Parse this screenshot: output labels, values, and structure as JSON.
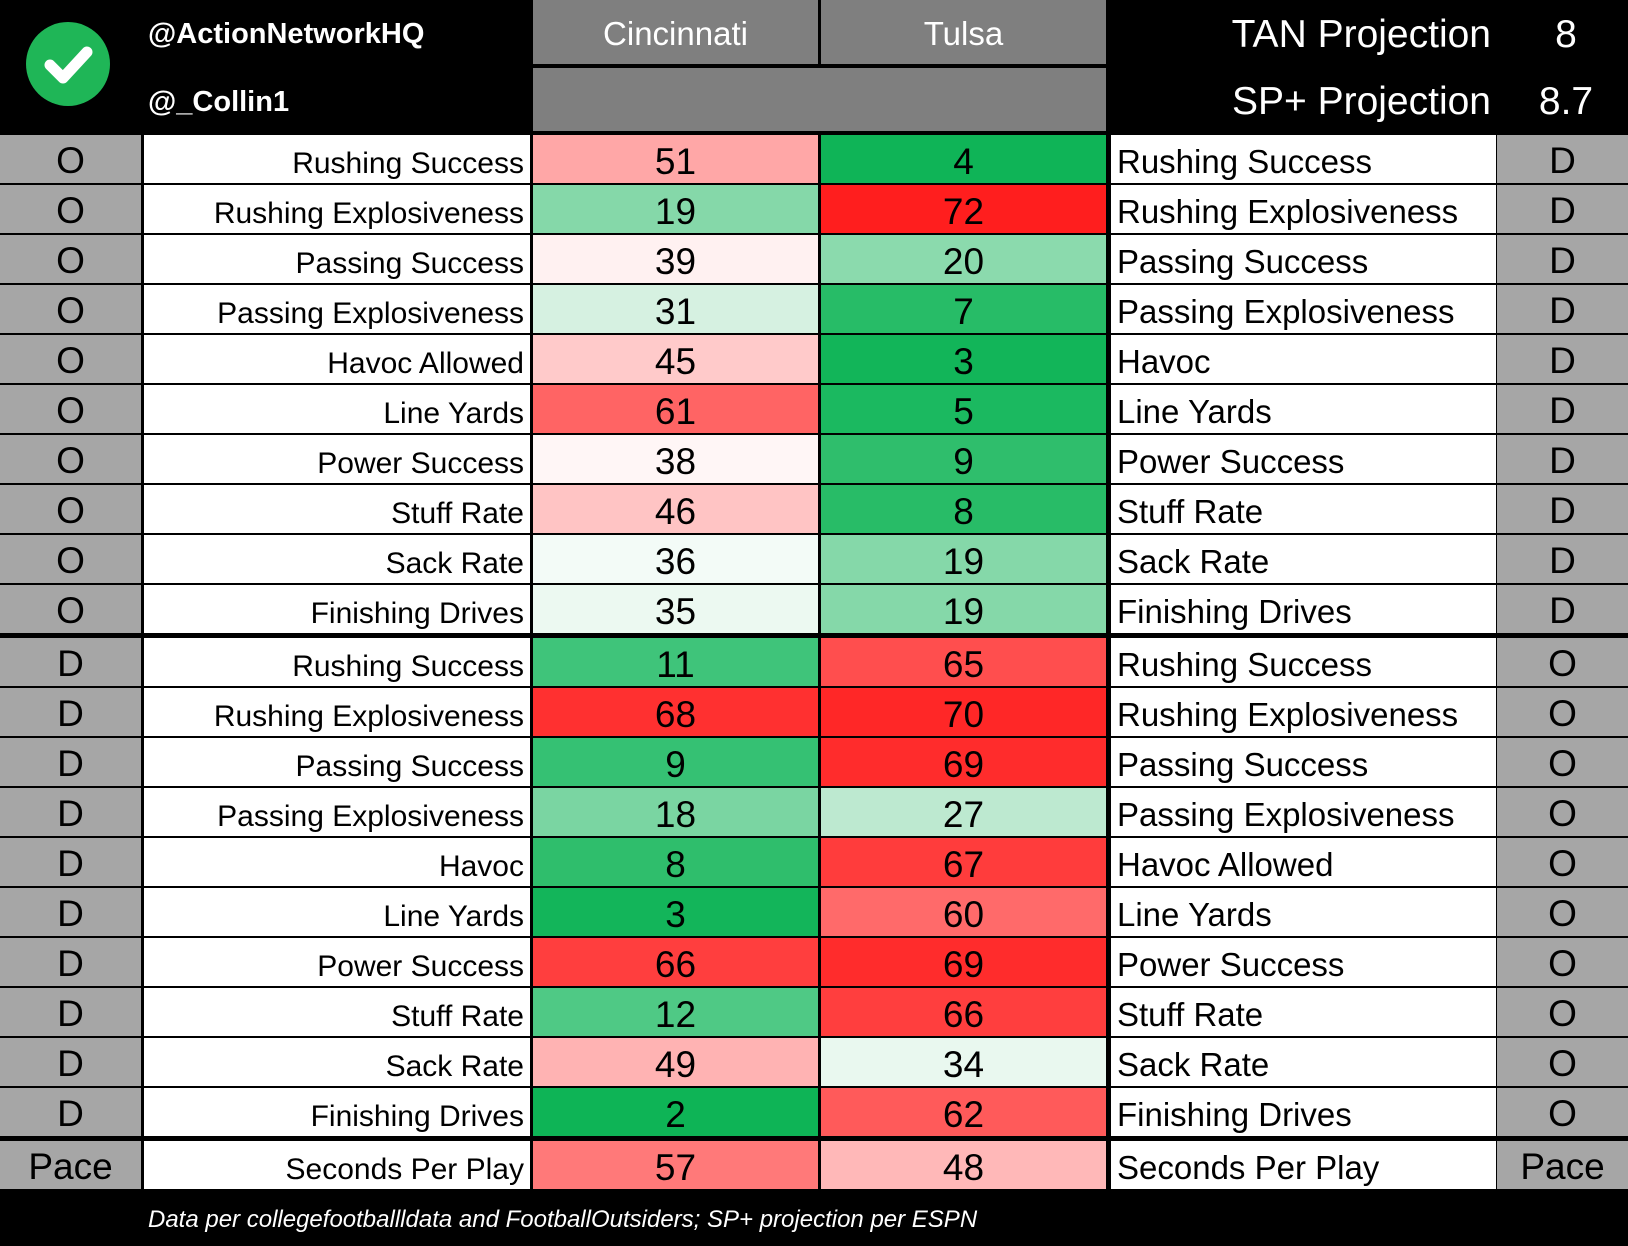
{
  "header": {
    "handle_primary": "@ActionNetworkHQ",
    "handle_secondary": "@_Collin1",
    "team_a": "Cincinnati",
    "team_b": "Tulsa",
    "projections": [
      {
        "label": "TAN Projection",
        "value": "8"
      },
      {
        "label": "SP+ Projection",
        "value": "8.7"
      }
    ]
  },
  "sections": [
    {
      "left_side": "O",
      "right_side": "D",
      "rows": [
        {
          "left_stat": "Rushing Success",
          "a": "51",
          "b": "4",
          "right_stat": "Rushing Success",
          "a_color": "#ffa7a7",
          "b_color": "#0fb457"
        },
        {
          "left_stat": "Rushing Explosiveness",
          "a": "19",
          "b": "72",
          "right_stat": "Rushing Explosiveness",
          "a_color": "#85d8a9",
          "b_color": "#ff1e1e"
        },
        {
          "left_stat": "Passing Success",
          "a": "39",
          "b": "20",
          "right_stat": "Passing Success",
          "a_color": "#fff1f1",
          "b_color": "#8bdaad"
        },
        {
          "left_stat": "Passing Explosiveness",
          "a": "31",
          "b": "7",
          "right_stat": "Passing Explosiveness",
          "a_color": "#d6f1e1",
          "b_color": "#27bc67"
        },
        {
          "left_stat": "Havoc Allowed",
          "a": "45",
          "b": "3",
          "right_stat": "Havoc",
          "a_color": "#ffcaca",
          "b_color": "#12b559"
        },
        {
          "left_stat": "Line Yards",
          "a": "61",
          "b": "5",
          "right_stat": "Line Yards",
          "a_color": "#ff6464",
          "b_color": "#1bb960"
        },
        {
          "left_stat": "Power Success",
          "a": "38",
          "b": "9",
          "right_stat": "Power Success",
          "a_color": "#fff6f6",
          "b_color": "#2fbe6c"
        },
        {
          "left_stat": "Stuff Rate",
          "a": "46",
          "b": "8",
          "right_stat": "Stuff Rate",
          "a_color": "#ffc4c4",
          "b_color": "#28bc67"
        },
        {
          "left_stat": "Sack Rate",
          "a": "36",
          "b": "19",
          "right_stat": "Sack Rate",
          "a_color": "#f3fbf7",
          "b_color": "#85d8a9"
        },
        {
          "left_stat": "Finishing Drives",
          "a": "35",
          "b": "19",
          "right_stat": "Finishing Drives",
          "a_color": "#ecf9f1",
          "b_color": "#85d8a9"
        }
      ]
    },
    {
      "left_side": "D",
      "right_side": "O",
      "rows": [
        {
          "left_stat": "Rushing Success",
          "a": "11",
          "b": "65",
          "right_stat": "Rushing Success",
          "a_color": "#3fc47a",
          "b_color": "#ff4e4e"
        },
        {
          "left_stat": "Rushing Explosiveness",
          "a": "68",
          "b": "70",
          "right_stat": "Rushing Explosiveness",
          "a_color": "#ff3030",
          "b_color": "#ff2727"
        },
        {
          "left_stat": "Passing Success",
          "a": "9",
          "b": "69",
          "right_stat": "Passing Success",
          "a_color": "#35c173",
          "b_color": "#ff2c2c"
        },
        {
          "left_stat": "Passing Explosiveness",
          "a": "18",
          "b": "27",
          "right_stat": "Passing Explosiveness",
          "a_color": "#7ad5a2",
          "b_color": "#bde9d0"
        },
        {
          "left_stat": "Havoc",
          "a": "8",
          "b": "67",
          "right_stat": "Havoc Allowed",
          "a_color": "#2fbe6c",
          "b_color": "#ff3c3c"
        },
        {
          "left_stat": "Line Yards",
          "a": "3",
          "b": "60",
          "right_stat": "Line Yards",
          "a_color": "#13b55a",
          "b_color": "#ff6a6a"
        },
        {
          "left_stat": "Power Success",
          "a": "66",
          "b": "69",
          "right_stat": "Power Success",
          "a_color": "#ff3e3e",
          "b_color": "#ff2c2c"
        },
        {
          "left_stat": "Stuff Rate",
          "a": "12",
          "b": "66",
          "right_stat": "Stuff Rate",
          "a_color": "#4fc985",
          "b_color": "#ff3e3e"
        },
        {
          "left_stat": "Sack Rate",
          "a": "49",
          "b": "34",
          "right_stat": "Sack Rate",
          "a_color": "#ffb3b3",
          "b_color": "#e9f8ef"
        },
        {
          "left_stat": "Finishing Drives",
          "a": "2",
          "b": "62",
          "right_stat": "Finishing Drives",
          "a_color": "#0eb456",
          "b_color": "#ff5a5a"
        }
      ]
    }
  ],
  "pace": {
    "left_side": "Pace",
    "right_side": "Pace",
    "left_stat": "Seconds Per Play",
    "a": "57",
    "b": "48",
    "right_stat": "Seconds Per Play",
    "a_color": "#ff7979",
    "b_color": "#ffb8b8"
  },
  "footer": {
    "source_note": "Data per collegefootballldata and FootballOutsiders; SP+ projection per ESPN"
  },
  "icons": {
    "logo": "check-circle-icon",
    "logo_color": "#1fb657"
  }
}
